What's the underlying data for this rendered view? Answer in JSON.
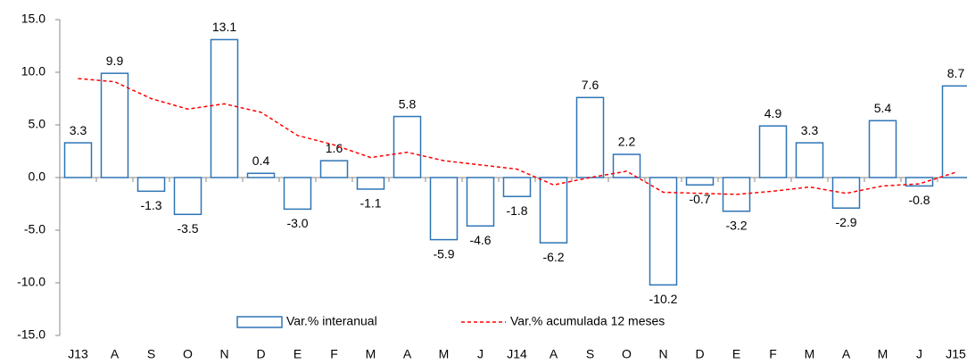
{
  "chart_data": {
    "type": "bar",
    "categories": [
      "J13",
      "A",
      "S",
      "O",
      "N",
      "D",
      "E",
      "F",
      "M",
      "A",
      "M",
      "J",
      "J14",
      "A",
      "S",
      "O",
      "N",
      "D",
      "E",
      "F",
      "M",
      "A",
      "M",
      "J",
      "J15"
    ],
    "series": [
      {
        "name": "Var.% interanual",
        "type": "bar",
        "color": "#2e75b6",
        "values": [
          3.3,
          9.9,
          -1.3,
          -3.5,
          13.1,
          0.4,
          -3.0,
          1.6,
          -1.1,
          5.8,
          -5.9,
          -4.6,
          -1.8,
          -6.2,
          7.6,
          2.2,
          -10.2,
          -0.7,
          -3.2,
          4.9,
          3.3,
          -2.9,
          5.4,
          -0.8,
          8.7
        ],
        "value_labels": [
          "3.3",
          "9.9",
          "-1.3",
          "-3.5",
          "13.1",
          "0.4",
          "-3.0",
          "1.6",
          "-1.1",
          "5.8",
          "-5.9",
          "-4.6",
          "-1.8",
          "-6.2",
          "7.6",
          "2.2",
          "-10.2",
          "-0.7",
          "-3.2",
          "4.9",
          "3.3",
          "-2.9",
          "5.4",
          "-0.8",
          "8.7"
        ]
      },
      {
        "name": "Var.% acumulada 12 meses",
        "type": "line",
        "color": "#ff0000",
        "values": [
          9.4,
          9.1,
          7.5,
          6.5,
          7.0,
          6.2,
          4.0,
          3.1,
          1.9,
          2.4,
          1.6,
          1.2,
          0.8,
          -0.7,
          0.0,
          0.6,
          -1.4,
          -1.5,
          -1.6,
          -1.3,
          -0.9,
          -1.5,
          -0.8,
          -0.6,
          0.5
        ]
      }
    ],
    "ylim": [
      -15,
      15
    ],
    "yticks": [
      {
        "value": -15,
        "label": "-15.0"
      },
      {
        "value": -10,
        "label": "-10.0"
      },
      {
        "value": -5,
        "label": "-5.0"
      },
      {
        "value": 0,
        "label": "0.0"
      },
      {
        "value": 5,
        "label": "5.0"
      },
      {
        "value": 10,
        "label": "10.0"
      },
      {
        "value": 15,
        "label": "15.0"
      }
    ],
    "legend": "bottom"
  }
}
